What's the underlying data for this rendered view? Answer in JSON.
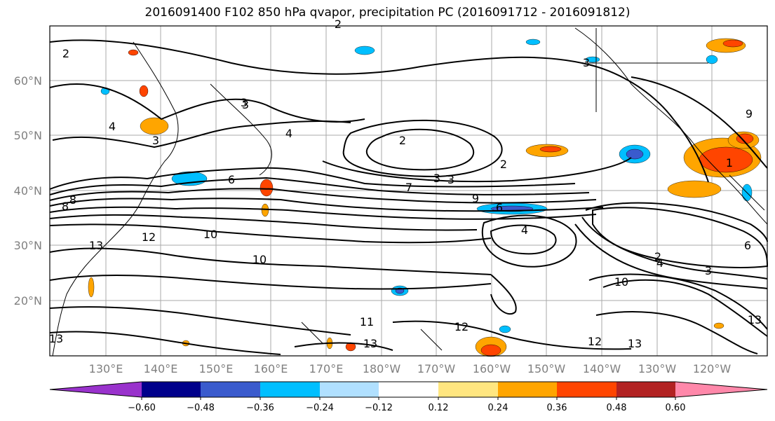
{
  "title": "2016091400 F102 850 hPa qvapor, precipitation PC (2016091712 - 2016091812)",
  "map": {
    "lat_labels": [
      "60°N",
      "50°N",
      "40°N",
      "30°N",
      "20°N"
    ],
    "lon_labels": [
      "130°E",
      "140°E",
      "150°E",
      "160°E",
      "170°E",
      "180°W",
      "170°W",
      "160°W",
      "150°W",
      "140°W",
      "130°W",
      "120°W"
    ],
    "contour_labels": [
      "2",
      "3",
      "4",
      "4",
      "3",
      "2",
      "6",
      "7",
      "3",
      "3",
      "9",
      "6",
      "8",
      "8",
      "13",
      "12",
      "10",
      "10",
      "11",
      "12",
      "13",
      "12",
      "13",
      "6",
      "4",
      "2",
      "4",
      "3",
      "10",
      "13",
      "3",
      "9",
      "13",
      "1",
      "3",
      "2",
      "2"
    ]
  },
  "colorbar": {
    "colors": [
      "#9932cc",
      "#00008b",
      "#3a5bcd",
      "#00bfff",
      "#b0e0ff",
      "#ffffff",
      "#ffe680",
      "#ffa500",
      "#ff4500",
      "#b22222",
      "#ff88aa"
    ],
    "tick_labels": [
      "−0.60",
      "−0.48",
      "−0.36",
      "−0.24",
      "−0.12",
      "0.12",
      "0.24",
      "0.36",
      "0.48",
      "0.60"
    ]
  }
}
